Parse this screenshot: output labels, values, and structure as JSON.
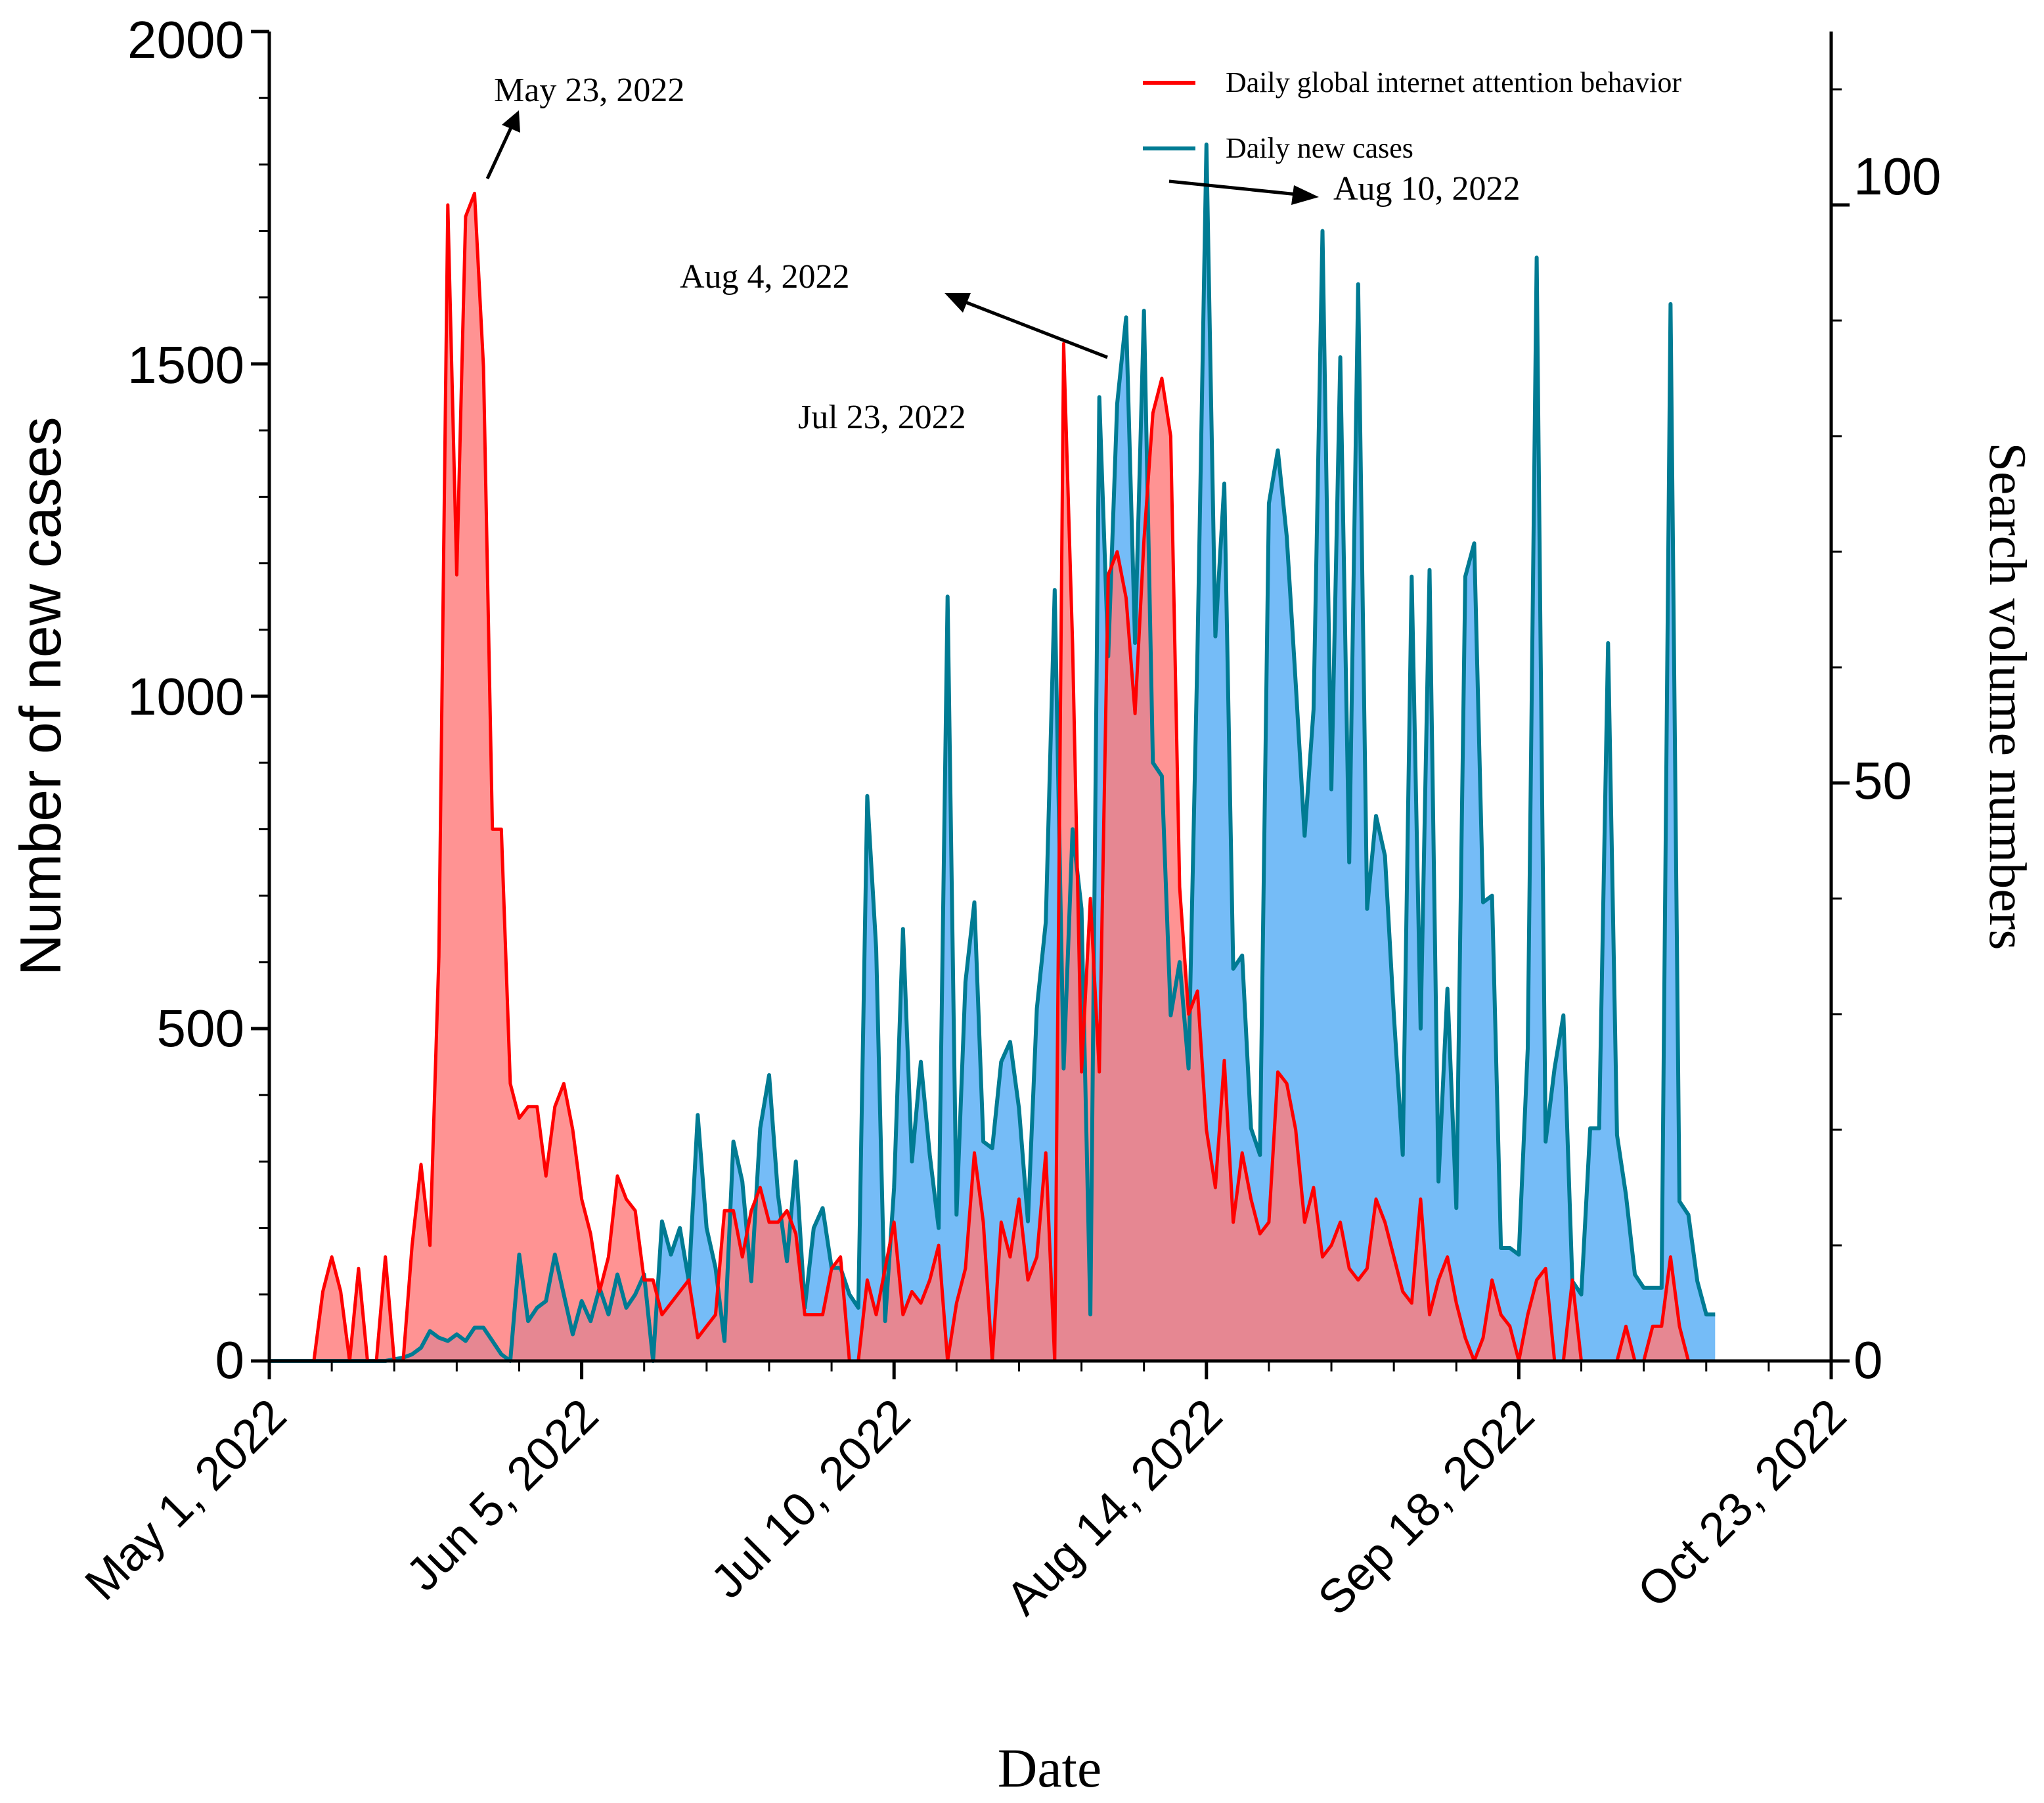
{
  "chart_data": {
    "type": "area",
    "xlabel": "Date",
    "ylabel_left": "Number of new cases",
    "ylabel_right": "Search volume numbers",
    "x_range_days": [
      0,
      175
    ],
    "x_ticks": [
      {
        "day": 0,
        "label": "May 1, 2022"
      },
      {
        "day": 35,
        "label": "Jun 5, 2022"
      },
      {
        "day": 70,
        "label": "Jul 10, 2022"
      },
      {
        "day": 105,
        "label": "Aug 14, 2022"
      },
      {
        "day": 140,
        "label": "Sep 18, 2022"
      },
      {
        "day": 175,
        "label": "Oct 23, 2022"
      }
    ],
    "y_left": {
      "range": [
        0,
        2000
      ],
      "ticks": [
        "0",
        "500",
        "1000",
        "1500",
        "2000"
      ]
    },
    "y_right": {
      "range": [
        0,
        115
      ],
      "ticks": [
        "0",
        "50",
        "100"
      ]
    },
    "legend": [
      {
        "label": "Daily global internet attention behavior",
        "color": "#ff0000"
      },
      {
        "label": "Daily new cases",
        "color": "#007b93"
      }
    ],
    "annotations": [
      {
        "label": "May 23, 2022",
        "day": 22
      },
      {
        "label": "Jul 23, 2022",
        "day": 83
      },
      {
        "label": "Aug 4, 2022",
        "day": 95
      },
      {
        "label": "Aug 10, 2022",
        "day": 101
      }
    ],
    "series": [
      {
        "name": "Daily new cases",
        "axis": "left",
        "line_color": "#007b93",
        "fill_color": "#75bcf7",
        "points": [
          [
            0,
            0
          ],
          [
            5,
            0
          ],
          [
            13,
            0
          ],
          [
            15,
            5
          ],
          [
            16,
            10
          ],
          [
            17,
            20
          ],
          [
            18,
            45
          ],
          [
            19,
            35
          ],
          [
            20,
            30
          ],
          [
            21,
            40
          ],
          [
            22,
            30
          ],
          [
            23,
            50
          ],
          [
            24,
            50
          ],
          [
            25,
            30
          ],
          [
            26,
            10
          ],
          [
            27,
            0
          ],
          [
            28,
            160
          ],
          [
            29,
            60
          ],
          [
            30,
            80
          ],
          [
            31,
            90
          ],
          [
            32,
            160
          ],
          [
            33,
            100
          ],
          [
            34,
            40
          ],
          [
            35,
            90
          ],
          [
            36,
            60
          ],
          [
            37,
            110
          ],
          [
            38,
            70
          ],
          [
            39,
            130
          ],
          [
            40,
            80
          ],
          [
            41,
            100
          ],
          [
            42,
            130
          ],
          [
            43,
            0
          ],
          [
            44,
            210
          ],
          [
            45,
            160
          ],
          [
            46,
            200
          ],
          [
            47,
            120
          ],
          [
            48,
            370
          ],
          [
            49,
            200
          ],
          [
            50,
            140
          ],
          [
            51,
            30
          ],
          [
            52,
            330
          ],
          [
            53,
            270
          ],
          [
            54,
            120
          ],
          [
            55,
            350
          ],
          [
            56,
            430
          ],
          [
            57,
            250
          ],
          [
            58,
            150
          ],
          [
            59,
            300
          ],
          [
            60,
            80
          ],
          [
            61,
            200
          ],
          [
            62,
            230
          ],
          [
            63,
            140
          ],
          [
            64,
            140
          ],
          [
            65,
            100
          ],
          [
            66,
            80
          ],
          [
            67,
            850
          ],
          [
            68,
            620
          ],
          [
            69,
            60
          ],
          [
            70,
            260
          ],
          [
            71,
            650
          ],
          [
            72,
            300
          ],
          [
            73,
            450
          ],
          [
            74,
            310
          ],
          [
            75,
            200
          ],
          [
            76,
            1150
          ],
          [
            77,
            220
          ],
          [
            78,
            570
          ],
          [
            79,
            690
          ],
          [
            80,
            330
          ],
          [
            81,
            320
          ],
          [
            82,
            450
          ],
          [
            83,
            480
          ],
          [
            84,
            380
          ],
          [
            85,
            210
          ],
          [
            86,
            530
          ],
          [
            87,
            660
          ],
          [
            88,
            1160
          ],
          [
            89,
            440
          ],
          [
            90,
            800
          ],
          [
            91,
            680
          ],
          [
            92,
            70
          ],
          [
            93,
            1450
          ],
          [
            94,
            1060
          ],
          [
            95,
            1440
          ],
          [
            96,
            1570
          ],
          [
            97,
            1080
          ],
          [
            98,
            1580
          ],
          [
            99,
            900
          ],
          [
            100,
            880
          ],
          [
            101,
            520
          ],
          [
            102,
            600
          ],
          [
            103,
            440
          ],
          [
            104,
            1070
          ],
          [
            105,
            1830
          ],
          [
            106,
            1090
          ],
          [
            107,
            1320
          ],
          [
            108,
            590
          ],
          [
            109,
            610
          ],
          [
            110,
            350
          ],
          [
            111,
            310
          ],
          [
            112,
            1290
          ],
          [
            113,
            1370
          ],
          [
            114,
            1240
          ],
          [
            115,
            1020
          ],
          [
            116,
            790
          ],
          [
            117,
            980
          ],
          [
            118,
            1700
          ],
          [
            119,
            860
          ],
          [
            120,
            1510
          ],
          [
            121,
            750
          ],
          [
            122,
            1620
          ],
          [
            123,
            680
          ],
          [
            124,
            820
          ],
          [
            125,
            760
          ],
          [
            126,
            520
          ],
          [
            127,
            310
          ],
          [
            128,
            1180
          ],
          [
            129,
            500
          ],
          [
            130,
            1190
          ],
          [
            131,
            270
          ],
          [
            132,
            560
          ],
          [
            133,
            230
          ],
          [
            134,
            1180
          ],
          [
            135,
            1230
          ],
          [
            136,
            690
          ],
          [
            137,
            700
          ],
          [
            138,
            170
          ],
          [
            139,
            170
          ],
          [
            140,
            160
          ],
          [
            141,
            470
          ],
          [
            142,
            1660
          ],
          [
            143,
            330
          ],
          [
            144,
            440
          ],
          [
            145,
            520
          ],
          [
            146,
            120
          ],
          [
            147,
            100
          ],
          [
            148,
            350
          ],
          [
            149,
            350
          ],
          [
            150,
            1080
          ],
          [
            151,
            340
          ],
          [
            152,
            250
          ],
          [
            153,
            130
          ],
          [
            154,
            110
          ],
          [
            155,
            110
          ],
          [
            156,
            110
          ],
          [
            157,
            1590
          ],
          [
            158,
            240
          ],
          [
            159,
            220
          ],
          [
            160,
            120
          ],
          [
            161,
            70
          ],
          [
            162,
            70
          ]
        ]
      },
      {
        "name": "Daily global internet attention behavior",
        "axis": "right",
        "line_color": "#ff0000",
        "fill_color": "#ff7b7b",
        "points": [
          [
            0,
            0
          ],
          [
            5,
            0
          ],
          [
            6,
            6
          ],
          [
            7,
            9
          ],
          [
            8,
            6
          ],
          [
            9,
            0
          ],
          [
            10,
            8
          ],
          [
            11,
            0
          ],
          [
            12,
            0
          ],
          [
            13,
            9
          ],
          [
            14,
            0
          ],
          [
            15,
            0
          ],
          [
            16,
            10
          ],
          [
            17,
            17
          ],
          [
            18,
            10
          ],
          [
            19,
            35
          ],
          [
            20,
            100
          ],
          [
            21,
            68
          ],
          [
            22,
            99
          ],
          [
            23,
            101
          ],
          [
            24,
            86
          ],
          [
            25,
            46
          ],
          [
            26,
            46
          ],
          [
            27,
            24
          ],
          [
            28,
            21
          ],
          [
            29,
            22
          ],
          [
            30,
            22
          ],
          [
            31,
            16
          ],
          [
            32,
            22
          ],
          [
            33,
            24
          ],
          [
            34,
            20
          ],
          [
            35,
            14
          ],
          [
            36,
            11
          ],
          [
            37,
            6
          ],
          [
            38,
            9
          ],
          [
            39,
            16
          ],
          [
            40,
            14
          ],
          [
            41,
            13
          ],
          [
            42,
            7
          ],
          [
            43,
            7
          ],
          [
            44,
            4
          ],
          [
            45,
            5
          ],
          [
            46,
            6
          ],
          [
            47,
            7
          ],
          [
            48,
            2
          ],
          [
            49,
            3
          ],
          [
            50,
            4
          ],
          [
            51,
            13
          ],
          [
            52,
            13
          ],
          [
            53,
            9
          ],
          [
            54,
            13
          ],
          [
            55,
            15
          ],
          [
            56,
            12
          ],
          [
            57,
            12
          ],
          [
            58,
            13
          ],
          [
            59,
            11
          ],
          [
            60,
            4
          ],
          [
            61,
            4
          ],
          [
            62,
            4
          ],
          [
            63,
            8
          ],
          [
            64,
            9
          ],
          [
            65,
            0
          ],
          [
            66,
            0
          ],
          [
            67,
            7
          ],
          [
            68,
            4
          ],
          [
            69,
            8
          ],
          [
            70,
            12
          ],
          [
            71,
            4
          ],
          [
            72,
            6
          ],
          [
            73,
            5
          ],
          [
            74,
            7
          ],
          [
            75,
            10
          ],
          [
            76,
            0
          ],
          [
            77,
            5
          ],
          [
            78,
            8
          ],
          [
            79,
            18
          ],
          [
            80,
            12
          ],
          [
            81,
            0
          ],
          [
            82,
            12
          ],
          [
            83,
            9
          ],
          [
            84,
            14
          ],
          [
            85,
            7
          ],
          [
            86,
            9
          ],
          [
            87,
            18
          ],
          [
            88,
            0
          ],
          [
            89,
            88
          ],
          [
            90,
            62
          ],
          [
            91,
            25
          ],
          [
            92,
            40
          ],
          [
            93,
            25
          ],
          [
            94,
            68
          ],
          [
            95,
            70
          ],
          [
            96,
            66
          ],
          [
            97,
            56
          ],
          [
            98,
            71
          ],
          [
            99,
            82
          ],
          [
            100,
            85
          ],
          [
            101,
            80
          ],
          [
            102,
            41
          ],
          [
            103,
            30
          ],
          [
            104,
            32
          ],
          [
            105,
            20
          ],
          [
            106,
            15
          ],
          [
            107,
            26
          ],
          [
            108,
            12
          ],
          [
            109,
            18
          ],
          [
            110,
            14
          ],
          [
            111,
            11
          ],
          [
            112,
            12
          ],
          [
            113,
            25
          ],
          [
            114,
            24
          ],
          [
            115,
            20
          ],
          [
            116,
            12
          ],
          [
            117,
            15
          ],
          [
            118,
            9
          ],
          [
            119,
            10
          ],
          [
            120,
            12
          ],
          [
            121,
            8
          ],
          [
            122,
            7
          ],
          [
            123,
            8
          ],
          [
            124,
            14
          ],
          [
            125,
            12
          ],
          [
            126,
            9
          ],
          [
            127,
            6
          ],
          [
            128,
            5
          ],
          [
            129,
            14
          ],
          [
            130,
            4
          ],
          [
            131,
            7
          ],
          [
            132,
            9
          ],
          [
            133,
            5
          ],
          [
            134,
            2
          ],
          [
            135,
            0
          ],
          [
            136,
            2
          ],
          [
            137,
            7
          ],
          [
            138,
            4
          ],
          [
            139,
            3
          ],
          [
            140,
            0
          ],
          [
            141,
            4
          ],
          [
            142,
            7
          ],
          [
            143,
            8
          ],
          [
            144,
            0
          ],
          [
            145,
            0
          ],
          [
            146,
            7
          ],
          [
            147,
            0
          ],
          [
            148,
            0
          ],
          [
            149,
            0
          ],
          [
            150,
            0
          ],
          [
            151,
            0
          ],
          [
            152,
            3
          ],
          [
            153,
            0
          ],
          [
            154,
            0
          ],
          [
            155,
            3
          ],
          [
            156,
            3
          ],
          [
            157,
            9
          ],
          [
            158,
            3
          ],
          [
            159,
            0
          ],
          [
            160,
            0
          ]
        ]
      }
    ]
  }
}
